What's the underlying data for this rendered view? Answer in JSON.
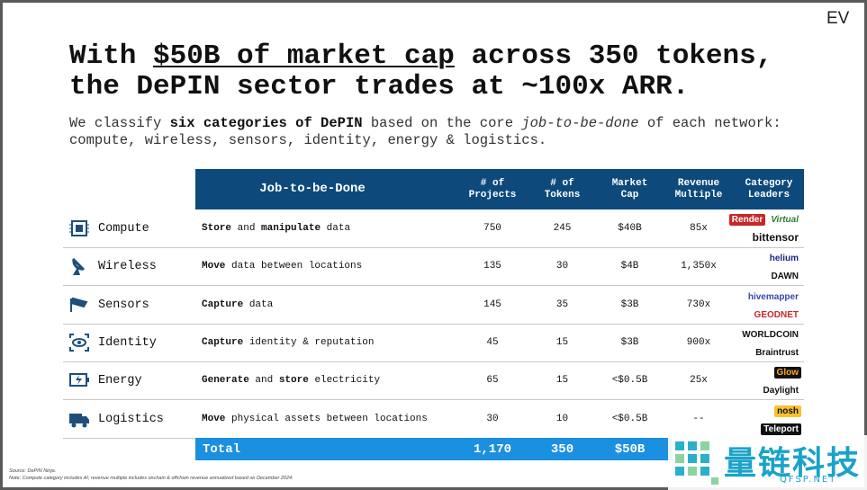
{
  "logo": "EV",
  "title": {
    "lines": [
      [
        {
          "text": "With "
        },
        {
          "text": "$50B of market cap",
          "underline": true
        },
        {
          "text": " across 350 tokens,"
        }
      ],
      [
        {
          "text": "the DePIN sector trades at ~100x ARR."
        }
      ]
    ]
  },
  "subtitle": {
    "lines": [
      [
        {
          "text": "We classify "
        },
        {
          "text": "six categories of DePIN",
          "bold": true
        },
        {
          "text": " based on the core "
        },
        {
          "text": "job-to-be-done",
          "italic": true
        },
        {
          "text": " of each network:"
        }
      ],
      [
        {
          "text": "compute, wireless, sensors, identity, energy & logistics."
        }
      ]
    ]
  },
  "table": {
    "header": [
      [
        "Job-to-be-Done"
      ],
      [
        "# of",
        "Projects"
      ],
      [
        "# of",
        "Tokens"
      ],
      [
        "Market",
        "Cap"
      ],
      [
        "Revenue",
        "Multiple"
      ],
      [
        "Category",
        "Leaders"
      ]
    ],
    "rows": [
      {
        "category": "Compute",
        "job": [
          {
            "text": "Store",
            "bold": true
          },
          {
            "text": " and "
          },
          {
            "text": "manipulate",
            "bold": true
          },
          {
            "text": " data"
          }
        ],
        "projects": "750",
        "tokens": "245",
        "market_cap": "$40B",
        "revenue_multiple": "85x",
        "leaders": [
          [
            "Render",
            "Virtual"
          ],
          [
            "bittensor"
          ]
        ]
      },
      {
        "category": "Wireless",
        "job": [
          {
            "text": "Move",
            "bold": true
          },
          {
            "text": " data between locations"
          }
        ],
        "projects": "135",
        "tokens": "30",
        "market_cap": "$4B",
        "revenue_multiple": "1,350x",
        "leaders": [
          [
            "helium"
          ],
          [
            "DAWN"
          ]
        ]
      },
      {
        "category": "Sensors",
        "job": [
          {
            "text": "Capture",
            "bold": true
          },
          {
            "text": " data"
          }
        ],
        "projects": "145",
        "tokens": "35",
        "market_cap": "$3B",
        "revenue_multiple": "730x",
        "leaders": [
          [
            "hivemapper"
          ],
          [
            "GEODNET"
          ]
        ]
      },
      {
        "category": "Identity",
        "job": [
          {
            "text": "Capture",
            "bold": true
          },
          {
            "text": " identity & reputation"
          }
        ],
        "projects": "45",
        "tokens": "15",
        "market_cap": "$3B",
        "revenue_multiple": "900x",
        "leaders": [
          [
            "WORLDCOIN"
          ],
          [
            "Braintrust"
          ]
        ]
      },
      {
        "category": "Energy",
        "job": [
          {
            "text": "Generate",
            "bold": true
          },
          {
            "text": " and "
          },
          {
            "text": "store",
            "bold": true
          },
          {
            "text": " electricity"
          }
        ],
        "projects": "65",
        "tokens": "15",
        "market_cap": "<$0.5B",
        "revenue_multiple": "25x",
        "leaders": [
          [
            "Glow"
          ],
          [
            "Daylight"
          ]
        ]
      },
      {
        "category": "Logistics",
        "job": [
          {
            "text": "Move",
            "bold": true
          },
          {
            "text": " physical assets between locations"
          }
        ],
        "projects": "30",
        "tokens": "10",
        "market_cap": "<$0.5B",
        "revenue_multiple": "--",
        "leaders": [
          [
            "nosh"
          ],
          [
            "Teleport"
          ]
        ]
      }
    ],
    "total": {
      "label": "Total",
      "projects": "1,170",
      "tokens": "350",
      "market_cap": "$50B"
    }
  },
  "footnotes": [
    "Source: DePIN Ninja.",
    "Note: Compute category includes AI; revenue multiple includes onchain & offchain revenue annualized based on December 2024."
  ],
  "watermark": {
    "text": "量链科技",
    "url": "QFSP.NET"
  }
}
